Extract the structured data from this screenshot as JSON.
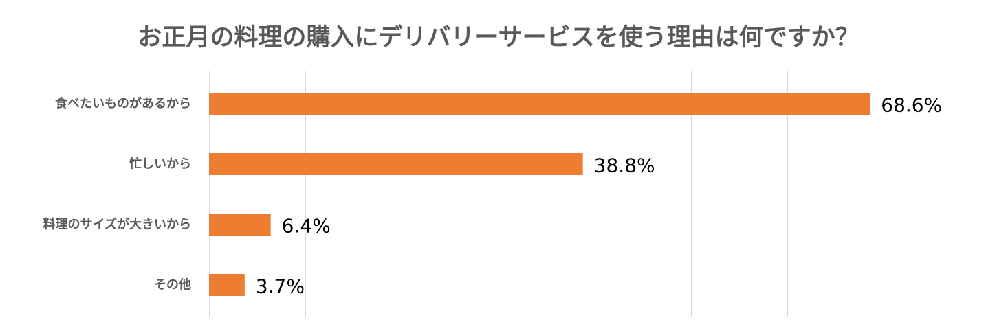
{
  "chart_data": {
    "type": "bar",
    "orientation": "horizontal",
    "title": "お正月の料理の購入にデリバリーサービスを使う理由は何ですか？",
    "categories": [
      "食べたいものがあるから",
      "忙しいから",
      "料理のサイズが大きいから",
      "その他"
    ],
    "values": [
      68.6,
      38.8,
      6.4,
      3.7
    ],
    "value_labels": [
      "68.6%",
      "38.8%",
      "6.4%",
      "3.7%"
    ],
    "xlim": [
      0,
      80
    ],
    "grid": true,
    "legend": "none",
    "bar_color": "#ed7d31",
    "grid_color": "#d9d9d9",
    "title_color": "#595959",
    "label_color": "#595959"
  }
}
